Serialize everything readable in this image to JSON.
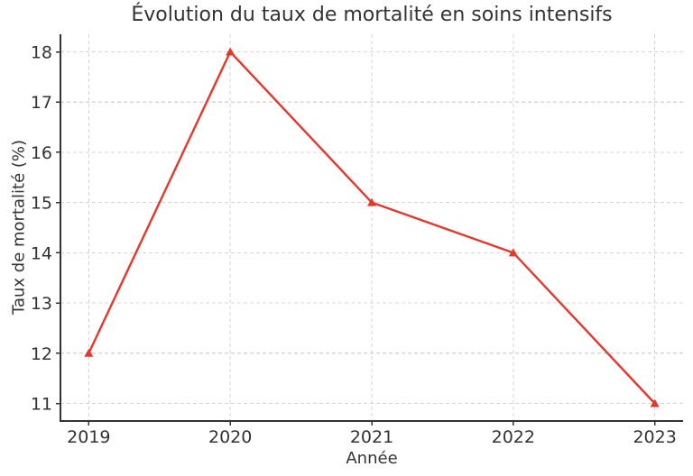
{
  "figure": {
    "background": "#ffffff"
  },
  "chart_data": {
    "type": "line",
    "title": "Évolution du taux de mortalité en soins intensifs",
    "xlabel": "Année",
    "ylabel": "Taux de mortalité (%)",
    "categories": [
      "2019",
      "2020",
      "2021",
      "2022",
      "2023"
    ],
    "values": [
      12,
      18,
      15,
      14,
      11
    ],
    "yticks": [
      11,
      12,
      13,
      14,
      15,
      16,
      17,
      18
    ],
    "xlim": [
      -0.2,
      4.2
    ],
    "ylim": [
      10.65,
      18.35
    ],
    "grid": true,
    "grid_style": "dashed",
    "legend": "none",
    "marker": "triangle-up",
    "line_color": "#e5372b",
    "grid_color": "#d5d5d5",
    "axis_color": "#333333",
    "text_color": "#333333"
  }
}
